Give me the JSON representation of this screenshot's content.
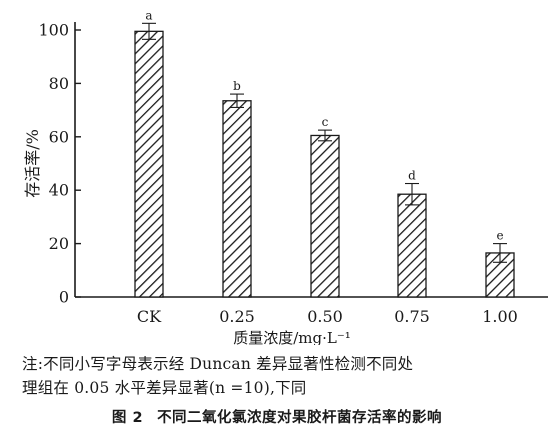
{
  "chart_data": {
    "type": "bar",
    "categories": [
      "CK",
      "0.25",
      "0.50",
      "0.75",
      "1.00"
    ],
    "values": [
      99.5,
      73.5,
      60.5,
      38.5,
      16.5
    ],
    "errors": [
      3,
      2.5,
      2,
      4,
      3.5
    ],
    "significance_letters": [
      "a",
      "b",
      "c",
      "d",
      "e"
    ],
    "xlabel": "质量浓度/mg·L⁻¹",
    "ylabel": "存活率/%",
    "ylim": [
      0,
      100
    ],
    "yticks": [
      0,
      20,
      40,
      60,
      80,
      100
    ],
    "bar_fill": "diagonal-hatch",
    "grid": false,
    "legend": "none"
  },
  "note": {
    "line1": "注:不同小写字母表示经 Duncan 差异显著性检测不同处",
    "line2": "理组在 0.05 水平差异显著(n =10),下同"
  },
  "caption": {
    "figure_no": "图 2",
    "text": "不同二氧化氯浓度对果胶杆菌存活率的影响"
  },
  "colors": {
    "ink": "#1a1a1a",
    "background": "#ffffff"
  }
}
